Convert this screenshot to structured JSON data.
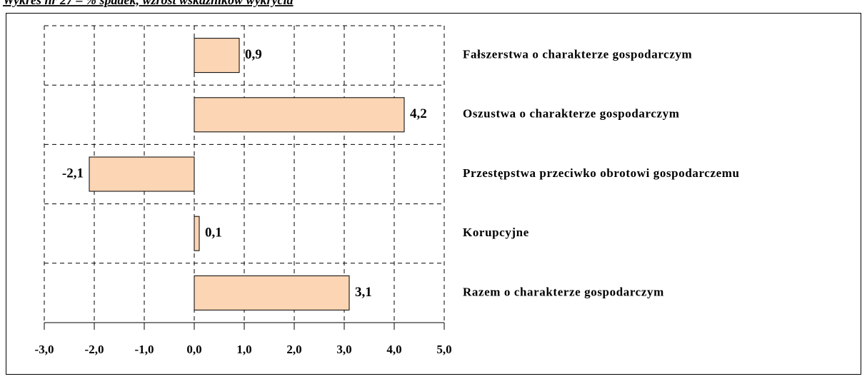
{
  "chart_data": {
    "type": "barh",
    "title": "Wykres nr 27 – % spadek, wzrost wskaźników wykrycia",
    "categories": [
      "Fałszerstwa o charakterze gospodarczym",
      "Oszustwa o charakterze gospodarczym",
      "Przestępstwa przeciwko obrotowi gospodarczemu",
      "Korupcyjne",
      "Razem o charakterze gospodarczym"
    ],
    "values": [
      0.9,
      4.2,
      -2.1,
      0.1,
      3.1
    ],
    "value_labels": [
      "0,9",
      "4,2",
      "-2,1",
      "0,1",
      "3,1"
    ],
    "color": "#fcd5b4",
    "xlim": [
      -3,
      5
    ],
    "xticks": [
      {
        "value": -3,
        "label": "-3,0"
      },
      {
        "value": -2,
        "label": "-2,0"
      },
      {
        "value": -1,
        "label": "-1,0"
      },
      {
        "value": 0,
        "label": "0,0"
      },
      {
        "value": 1,
        "label": "1,0"
      },
      {
        "value": 2,
        "label": "2,0"
      },
      {
        "value": 3,
        "label": "3,0"
      },
      {
        "value": 4,
        "label": "4,0"
      },
      {
        "value": 5,
        "label": "5,0"
      }
    ],
    "grid": true
  }
}
